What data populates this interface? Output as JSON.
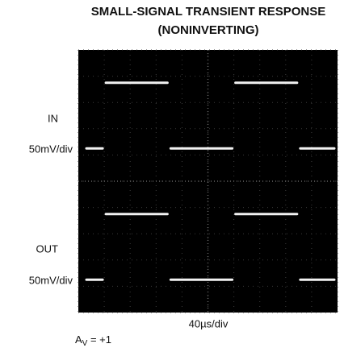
{
  "chart_data": {
    "type": "scope",
    "title": [
      "SMALL-SIGNAL TRANSIENT RESPONSE",
      "(NONINVERTING)"
    ],
    "channel_labels": [
      {
        "name": "IN",
        "scale": "50mV/div"
      },
      {
        "name": "OUT",
        "scale": "50mV/div"
      }
    ],
    "x_label": "40µs/div",
    "gain_label": {
      "symbol": "A",
      "subscript": "V",
      "text": " = +1"
    },
    "xlim": [
      0,
      10
    ],
    "ylim": [
      -5,
      5
    ],
    "xticks": [
      0,
      1,
      2,
      3,
      4,
      5,
      6,
      7,
      8,
      9,
      10
    ],
    "yticks": [
      -5,
      -4,
      -3,
      -2,
      -1,
      0,
      1,
      2,
      3,
      4,
      5
    ],
    "grid": true,
    "background": "#000000",
    "x": [
      0,
      1,
      3.5,
      6,
      8.5
    ],
    "series": [
      {
        "name": "IN",
        "color": "#f2f2f2",
        "values": [
          1.25,
          3.75,
          1.25,
          3.75,
          1.25
        ]
      },
      {
        "name": "OUT",
        "color": "#f2f2f2",
        "values": [
          -3.75,
          -1.25,
          -3.75,
          -1.25,
          -3.75
        ]
      }
    ]
  }
}
